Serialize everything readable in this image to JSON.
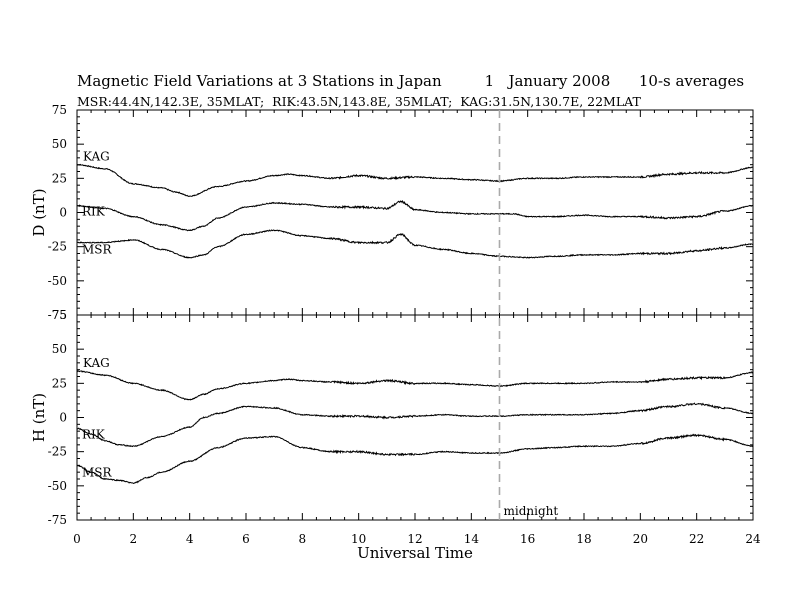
{
  "header": {
    "title": "Magnetic Field Variations at 3 Stations in Japan",
    "day": "1",
    "month_year": "January 2008",
    "averaging": "10-s averages",
    "stations_line": "MSR:44.4N,142.3E, 35MLAT;  RIK:43.5N,143.8E, 35MLAT;  KAG:31.5N,130.7E, 22MLAT"
  },
  "chart_data": {
    "type": "line",
    "xlabel": "Universal Time",
    "xlim": [
      0,
      24
    ],
    "x_ticks": [
      "0",
      "2",
      "4",
      "6",
      "8",
      "10",
      "12",
      "14",
      "16",
      "18",
      "20",
      "22",
      "24"
    ],
    "y_ticks": [
      "75",
      "50",
      "25",
      "0",
      "-25",
      "-50",
      "-75"
    ],
    "marker": {
      "x": 15,
      "label": "midnight",
      "style": "dashed",
      "color": "#aaaaaa"
    },
    "panels": [
      {
        "ylabel": "D (nT)",
        "ylim": [
          -75,
          75
        ],
        "series": [
          {
            "name": "KAG",
            "x": [
              0,
              1,
              2,
              3,
              3.5,
              4,
              5,
              6,
              7,
              7.5,
              8,
              9,
              10,
              11,
              12,
              13,
              14,
              15,
              16,
              17,
              18,
              19,
              20,
              21,
              22,
              23,
              24
            ],
            "y": [
              35,
              32,
              21,
              18,
              15,
              12,
              19,
              23,
              27,
              28,
              27,
              25,
              27,
              25,
              26,
              25,
              24,
              23,
              25,
              25,
              26,
              26,
              26,
              28,
              29,
              29,
              33
            ]
          },
          {
            "name": "RIK",
            "x": [
              0,
              1,
              2,
              3,
              4,
              4.5,
              5,
              6,
              7,
              8,
              9,
              10,
              11,
              11.5,
              12,
              13,
              14,
              15,
              15.5,
              16,
              17,
              18,
              19,
              20,
              21,
              22,
              23,
              24
            ],
            "y": [
              5,
              3,
              -3,
              -9,
              -13,
              -10,
              -4,
              4,
              7,
              6,
              4,
              4,
              3,
              8,
              2,
              0,
              -1,
              -1,
              -1,
              -3,
              -3,
              -2,
              -3,
              -3,
              -4,
              -3,
              1,
              5
            ]
          },
          {
            "name": "MSR",
            "x": [
              0,
              1,
              1.5,
              2,
              3,
              4,
              4.5,
              5,
              6,
              7,
              8,
              9,
              10,
              11,
              11.5,
              12,
              13,
              14,
              15,
              16,
              17,
              18,
              19,
              20,
              21,
              22,
              23,
              24
            ],
            "y": [
              -22,
              -22,
              -21,
              -20,
              -27,
              -33,
              -31,
              -25,
              -16,
              -13,
              -17,
              -19,
              -22,
              -22,
              -16,
              -24,
              -27,
              -30,
              -32,
              -33,
              -32,
              -31,
              -31,
              -30,
              -30,
              -28,
              -26,
              -23
            ]
          }
        ]
      },
      {
        "ylabel": "H (nT)",
        "ylim": [
          -75,
          75
        ],
        "series": [
          {
            "name": "KAG",
            "x": [
              0,
              1,
              2,
              3,
              4,
              4.5,
              5,
              6,
              7,
              7.5,
              8,
              9,
              10,
              11,
              12,
              13,
              14,
              15,
              16,
              17,
              18,
              19,
              20,
              21,
              22,
              23,
              24
            ],
            "y": [
              34,
              31,
              25,
              20,
              13,
              17,
              21,
              25,
              27,
              28,
              27,
              26,
              25,
              27,
              25,
              25,
              24,
              23,
              25,
              25,
              25,
              26,
              26,
              28,
              29,
              29,
              33
            ]
          },
          {
            "name": "RIK",
            "x": [
              0,
              0.5,
              1,
              1.5,
              2,
              3,
              4,
              4.5,
              5,
              6,
              7,
              8,
              9,
              10,
              11,
              12,
              13,
              14,
              15,
              16,
              17,
              18,
              19,
              20,
              21,
              22,
              23,
              24
            ],
            "y": [
              -8,
              -12,
              -17,
              -20,
              -21,
              -14,
              -7,
              0,
              3,
              8,
              7,
              2,
              1,
              1,
              0,
              1,
              2,
              1,
              1,
              2,
              2,
              2,
              3,
              5,
              8,
              10,
              7,
              3
            ]
          },
          {
            "name": "MSR",
            "x": [
              0,
              0.5,
              1,
              1.5,
              2,
              2.5,
              3,
              4,
              5,
              6,
              7,
              8,
              9,
              10,
              11,
              12,
              13,
              14,
              15,
              16,
              17,
              18,
              19,
              20,
              21,
              22,
              23,
              24
            ],
            "y": [
              -35,
              -40,
              -45,
              -46,
              -48,
              -44,
              -40,
              -32,
              -22,
              -15,
              -14,
              -22,
              -25,
              -25,
              -27,
              -27,
              -25,
              -26,
              -26,
              -23,
              -22,
              -21,
              -21,
              -19,
              -15,
              -13,
              -16,
              -21
            ]
          }
        ]
      }
    ]
  }
}
